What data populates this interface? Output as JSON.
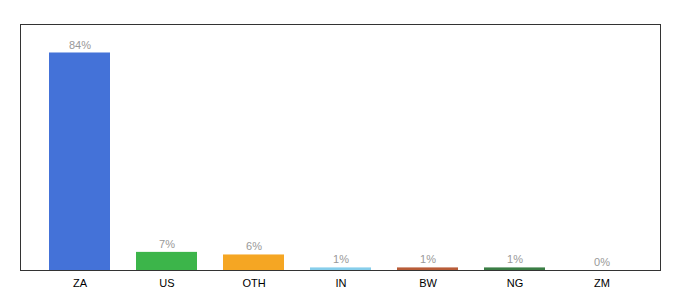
{
  "chart_data": {
    "type": "bar",
    "categories": [
      "ZA",
      "US",
      "OTH",
      "IN",
      "BW",
      "NG",
      "ZM"
    ],
    "values": [
      84,
      7,
      6,
      1,
      1,
      1,
      0
    ],
    "value_labels": [
      "84%",
      "7%",
      "6%",
      "1%",
      "1%",
      "1%",
      "0%"
    ],
    "colors": [
      "#4472d8",
      "#3cb54a",
      "#f5a623",
      "#87ceeb",
      "#b85c38",
      "#3a7d44",
      "#cccccc"
    ],
    "ylim": [
      0,
      95
    ],
    "grid": false,
    "data_labels": true,
    "tick_labels": "x"
  }
}
